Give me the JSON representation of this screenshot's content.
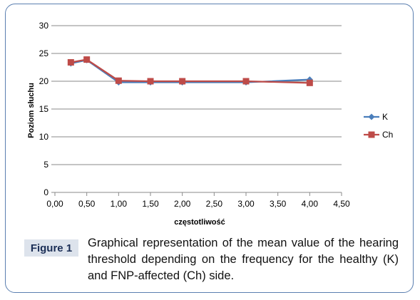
{
  "chart_data": {
    "type": "line",
    "title": "",
    "xlabel": "częstotliwość",
    "ylabel": "Poziom słuchu",
    "xlim": [
      0,
      4.5
    ],
    "ylim": [
      0,
      30
    ],
    "x_ticks": [
      "0,00",
      "0,50",
      "1,00",
      "1,50",
      "2,00",
      "2,50",
      "3,00",
      "3,50",
      "4,00",
      "4,50"
    ],
    "x_tick_values": [
      0,
      0.5,
      1,
      1.5,
      2,
      2.5,
      3,
      3.5,
      4,
      4.5
    ],
    "y_ticks": [
      "0",
      "5",
      "10",
      "15",
      "20",
      "25",
      "30"
    ],
    "y_tick_values": [
      0,
      5,
      10,
      15,
      20,
      25,
      30
    ],
    "grid": "horizontal",
    "legend_position": "right",
    "series": [
      {
        "name": "K",
        "color": "#4a7ebb",
        "marker": "diamond",
        "x": [
          0.25,
          0.5,
          1,
          1.5,
          2,
          3,
          4
        ],
        "y": [
          23.2,
          23.8,
          19.8,
          19.8,
          19.8,
          19.8,
          20.3
        ]
      },
      {
        "name": "Ch",
        "color": "#be4b48",
        "marker": "square",
        "x": [
          0.25,
          0.5,
          1,
          1.5,
          2,
          3,
          4
        ],
        "y": [
          23.4,
          23.9,
          20.1,
          20.0,
          20.0,
          20.0,
          19.7
        ]
      }
    ]
  },
  "caption": {
    "label": "Figure 1",
    "text": "Graphical representation of the mean value of the hearing threshold depending on the frequency for the healthy (K) and FNP-affected (Ch) side."
  }
}
